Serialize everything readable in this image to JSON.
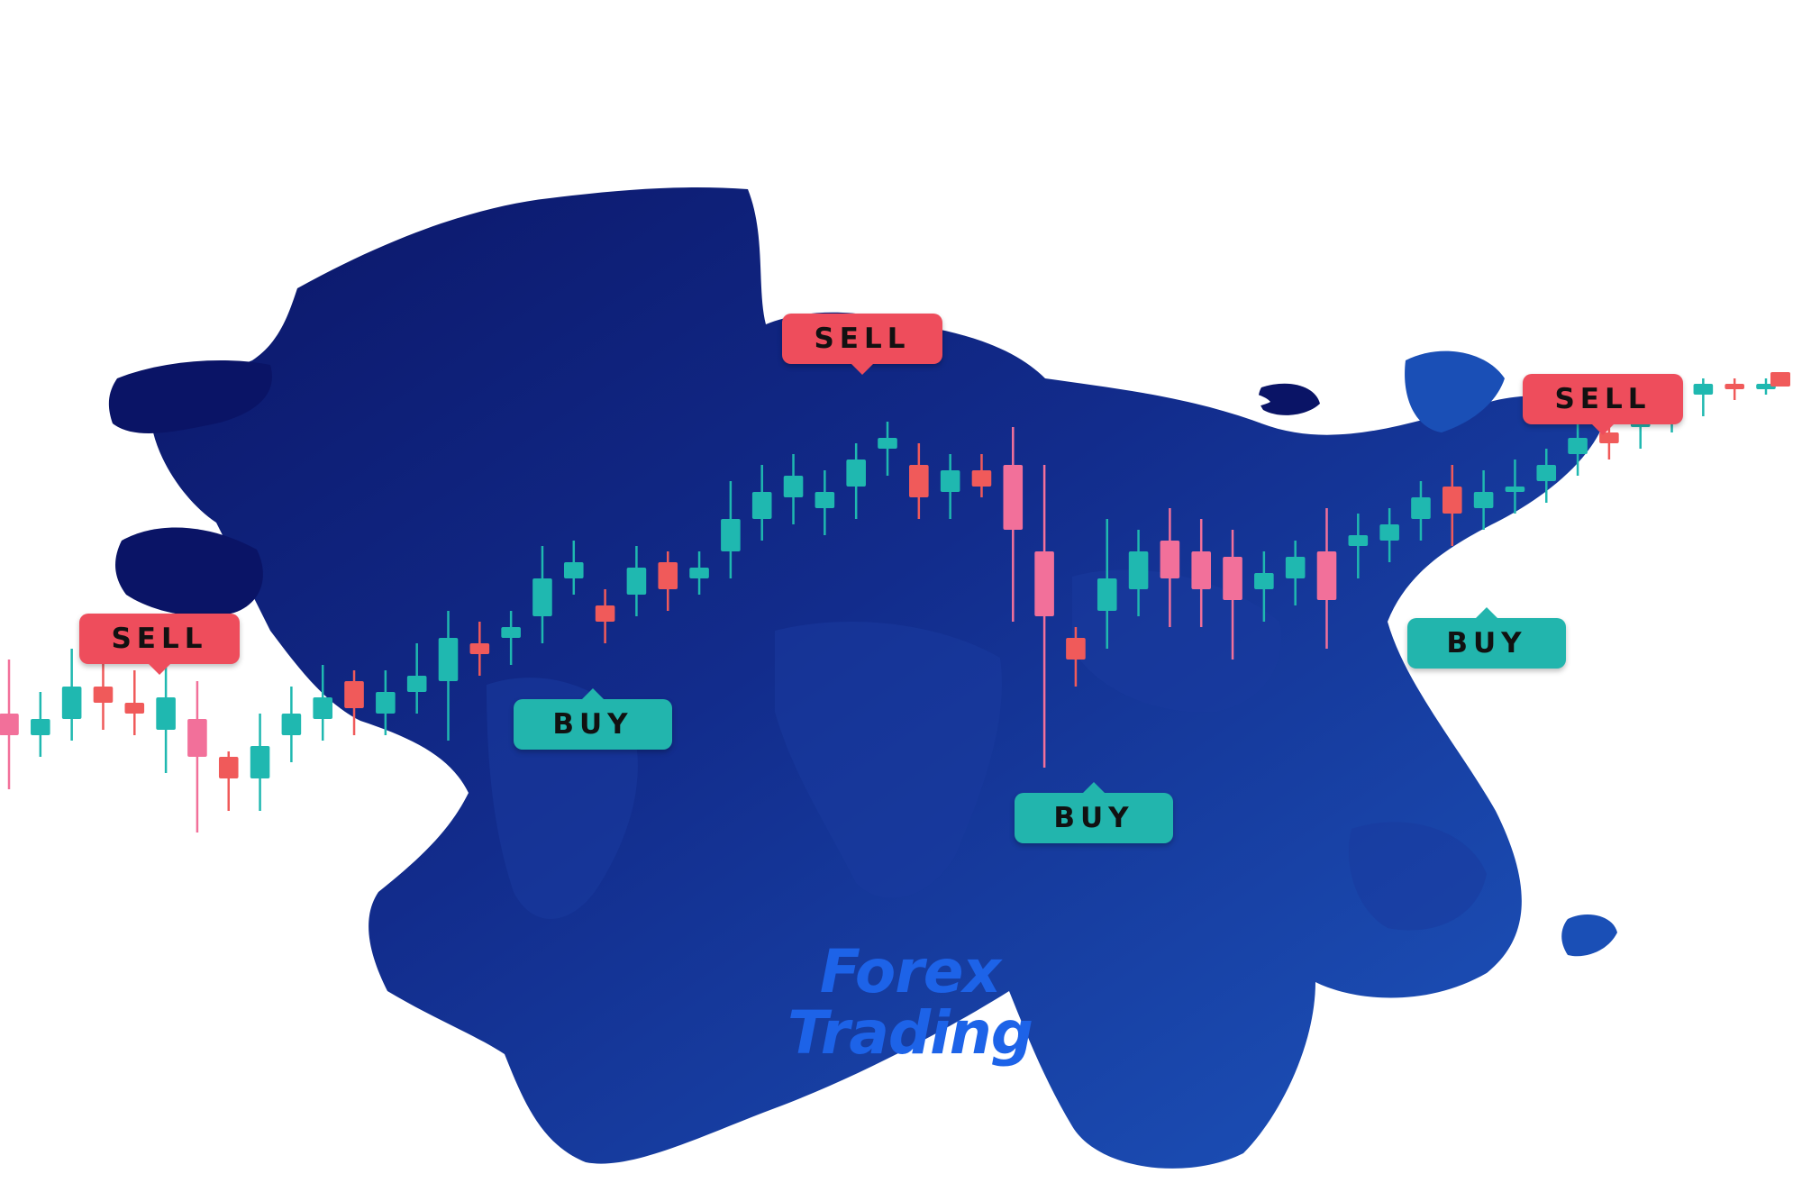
{
  "headline": {
    "line1": "Forex",
    "line2": "Trading"
  },
  "tags": [
    {
      "kind": "sell",
      "label": "SELL"
    },
    {
      "kind": "sell",
      "label": "SELL"
    },
    {
      "kind": "sell",
      "label": "SELL"
    },
    {
      "kind": "buy",
      "label": "BUY"
    },
    {
      "kind": "buy",
      "label": "BUY"
    },
    {
      "kind": "buy",
      "label": "BUY"
    }
  ],
  "colors": {
    "map_dark": "#0a1466",
    "map_mid": "#1743a6",
    "map_light": "#1f63c8",
    "bull": "#1fb8b0",
    "bear": "#f05a5a",
    "bear_pink": "#f2709a",
    "headline": "#1d63e8",
    "background": "#ffffff"
  },
  "chart_data": {
    "type": "candlestick",
    "title": "",
    "xlabel": "",
    "ylabel": "",
    "ylim": [
      0,
      100
    ],
    "candles": [
      {
        "o": 38,
        "c": 34,
        "h": 48,
        "l": 24
      },
      {
        "o": 34,
        "c": 37,
        "h": 42,
        "l": 30
      },
      {
        "o": 37,
        "c": 43,
        "h": 50,
        "l": 33
      },
      {
        "o": 43,
        "c": 40,
        "h": 48,
        "l": 35
      },
      {
        "o": 40,
        "c": 38,
        "h": 46,
        "l": 34
      },
      {
        "o": 35,
        "c": 41,
        "h": 47,
        "l": 27
      },
      {
        "o": 37,
        "c": 30,
        "h": 44,
        "l": 16
      },
      {
        "o": 30,
        "c": 26,
        "h": 31,
        "l": 20
      },
      {
        "o": 26,
        "c": 32,
        "h": 38,
        "l": 20
      },
      {
        "o": 34,
        "c": 38,
        "h": 43,
        "l": 29
      },
      {
        "o": 37,
        "c": 41,
        "h": 47,
        "l": 33
      },
      {
        "o": 44,
        "c": 39,
        "h": 46,
        "l": 34
      },
      {
        "o": 38,
        "c": 42,
        "h": 46,
        "l": 34
      },
      {
        "o": 42,
        "c": 45,
        "h": 51,
        "l": 38
      },
      {
        "o": 44,
        "c": 52,
        "h": 57,
        "l": 33
      },
      {
        "o": 51,
        "c": 49,
        "h": 55,
        "l": 45
      },
      {
        "o": 52,
        "c": 54,
        "h": 57,
        "l": 47
      },
      {
        "o": 56,
        "c": 63,
        "h": 69,
        "l": 51
      },
      {
        "o": 63,
        "c": 66,
        "h": 70,
        "l": 60
      },
      {
        "o": 58,
        "c": 55,
        "h": 61,
        "l": 51
      },
      {
        "o": 60,
        "c": 65,
        "h": 69,
        "l": 56
      },
      {
        "o": 66,
        "c": 61,
        "h": 68,
        "l": 57
      },
      {
        "o": 63,
        "c": 65,
        "h": 68,
        "l": 60
      },
      {
        "o": 68,
        "c": 74,
        "h": 81,
        "l": 63
      },
      {
        "o": 74,
        "c": 79,
        "h": 84,
        "l": 70
      },
      {
        "o": 78,
        "c": 82,
        "h": 86,
        "l": 73
      },
      {
        "o": 76,
        "c": 79,
        "h": 83,
        "l": 71
      },
      {
        "o": 80,
        "c": 85,
        "h": 88,
        "l": 74
      },
      {
        "o": 87,
        "c": 89,
        "h": 92,
        "l": 82
      },
      {
        "o": 84,
        "c": 78,
        "h": 88,
        "l": 74
      },
      {
        "o": 79,
        "c": 83,
        "h": 86,
        "l": 74
      },
      {
        "o": 83,
        "c": 80,
        "h": 86,
        "l": 78
      },
      {
        "o": 84,
        "c": 72,
        "h": 91,
        "l": 55
      },
      {
        "o": 68,
        "c": 56,
        "h": 84,
        "l": 28
      },
      {
        "o": 52,
        "c": 48,
        "h": 54,
        "l": 43
      },
      {
        "o": 57,
        "c": 63,
        "h": 74,
        "l": 50
      },
      {
        "o": 61,
        "c": 68,
        "h": 72,
        "l": 56
      },
      {
        "o": 70,
        "c": 63,
        "h": 76,
        "l": 54
      },
      {
        "o": 68,
        "c": 61,
        "h": 74,
        "l": 54
      },
      {
        "o": 67,
        "c": 59,
        "h": 72,
        "l": 48
      },
      {
        "o": 61,
        "c": 64,
        "h": 68,
        "l": 55
      },
      {
        "o": 63,
        "c": 67,
        "h": 70,
        "l": 58
      },
      {
        "o": 68,
        "c": 59,
        "h": 76,
        "l": 50
      },
      {
        "o": 69,
        "c": 71,
        "h": 75,
        "l": 63
      },
      {
        "o": 70,
        "c": 73,
        "h": 76,
        "l": 66
      },
      {
        "o": 74,
        "c": 78,
        "h": 81,
        "l": 70
      },
      {
        "o": 80,
        "c": 75,
        "h": 84,
        "l": 69
      },
      {
        "o": 76,
        "c": 79,
        "h": 83,
        "l": 72
      },
      {
        "o": 79,
        "c": 80,
        "h": 85,
        "l": 75
      },
      {
        "o": 81,
        "c": 84,
        "h": 87,
        "l": 77
      },
      {
        "o": 86,
        "c": 89,
        "h": 92,
        "l": 82
      },
      {
        "o": 90,
        "c": 88,
        "h": 93,
        "l": 85
      },
      {
        "o": 91,
        "c": 93,
        "h": 96,
        "l": 87
      },
      {
        "o": 94,
        "c": 98,
        "h": 100,
        "l": 90
      },
      {
        "o": 97,
        "c": 99,
        "h": 100,
        "l": 93
      },
      {
        "o": 99,
        "c": 98,
        "h": 100,
        "l": 96
      },
      {
        "o": 98,
        "c": 99,
        "h": 100,
        "l": 97
      }
    ]
  }
}
